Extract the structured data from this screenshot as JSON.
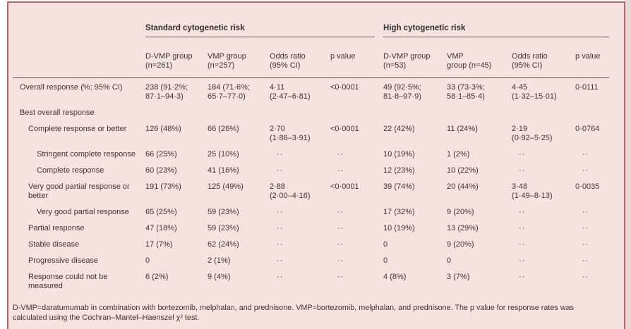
{
  "panel": {
    "background": "#f6e2df",
    "frame_color": "#b36372",
    "rule_color": "#56484c"
  },
  "header": {
    "groups": [
      {
        "label": "Standard cytogenetic risk"
      },
      {
        "label": "High cytogenetic risk"
      }
    ],
    "columns": [
      "D-VMP group\n(n=261)",
      "VMP group\n(n=257)",
      "Odds ratio\n(95% CI)",
      "p value",
      "D-VMP group\n(n=53)",
      "VMP\ngroup (n=45)",
      "Odds ratio\n(95% CI)",
      "p value"
    ]
  },
  "rows": [
    {
      "label": "Overall response (%; 95% CI)",
      "indent": 0,
      "cells": [
        "238 (91·2%;\n87·1–94·3)",
        "184 (71·6%;\n65·7–77·0)",
        "4·11\n(2·47–6·81)",
        "<0·0001",
        "49 (92·5%;\n81·8–97·9)",
        "33 (73·3%;\n58·1–85·4)",
        "4·45\n(1·32–15·01)",
        "0·0111"
      ]
    },
    {
      "label": "Best overall response",
      "indent": 0,
      "cells": [
        "",
        "",
        "",
        "",
        "",
        "",
        "",
        ""
      ]
    },
    {
      "label": "Complete response or better",
      "indent": 1,
      "cells": [
        "126 (48%)",
        "66 (26%)",
        "2·70\n(1·86–3·91)",
        "<0·0001",
        "22 (42%)",
        "11 (24%)",
        "2·19\n(0·92–5·25)",
        "0·0764"
      ]
    },
    {
      "label": "Stringent complete response",
      "indent": 2,
      "cells": [
        "66 (25%)",
        "25 (10%)",
        "··",
        "··",
        "10 (19%)",
        "1 (2%)",
        "··",
        "··"
      ]
    },
    {
      "label": "Complete response",
      "indent": 2,
      "cells": [
        "60 (23%)",
        "41 (16%)",
        "··",
        "··",
        "12 (23%)",
        "10 (22%)",
        "··",
        "··"
      ]
    },
    {
      "label": "Very good partial response or\nbetter",
      "indent": 1,
      "cells": [
        "191 (73%)",
        "125 (49%)",
        "2·88\n(2·00–4·16)",
        "<0·0001",
        "39 (74%)",
        "20 (44%)",
        "3·48\n(1·49–8·13)",
        "0·0035"
      ]
    },
    {
      "label": "Very good partial response",
      "indent": 2,
      "cells": [
        "65 (25%)",
        "59 (23%)",
        "··",
        "··",
        "17 (32%)",
        "9 (20%)",
        "··",
        "··"
      ]
    },
    {
      "label": "Partial response",
      "indent": 1,
      "cells": [
        "47 (18%)",
        "59 (23%)",
        "··",
        "··",
        "10 (19%)",
        "13 (29%)",
        "··",
        "··"
      ]
    },
    {
      "label": "Stable disease",
      "indent": 1,
      "cells": [
        "17 (7%)",
        "62 (24%)",
        "··",
        "··",
        "0",
        "9 (20%)",
        "··",
        "··"
      ]
    },
    {
      "label": "Progressive disease",
      "indent": 1,
      "cells": [
        "0",
        "2 (1%)",
        "··",
        "··",
        "0",
        "0",
        "··",
        "··"
      ]
    },
    {
      "label": "Response could not be\nmeasured",
      "indent": 1,
      "cells": [
        "6 (2%)",
        "9 (4%)",
        "··",
        "··",
        "4 (8%)",
        "3 (7%)",
        "··",
        "··"
      ]
    }
  ],
  "footnote": "D-VMP=daratumumab in combination with bortezomib, melphalan, and prednisone. VMP=bortezomib, melphalan, and prednisone. The p value for response rates was\ncalculated using the Cochran–Mantel–Haenszel χ² test."
}
